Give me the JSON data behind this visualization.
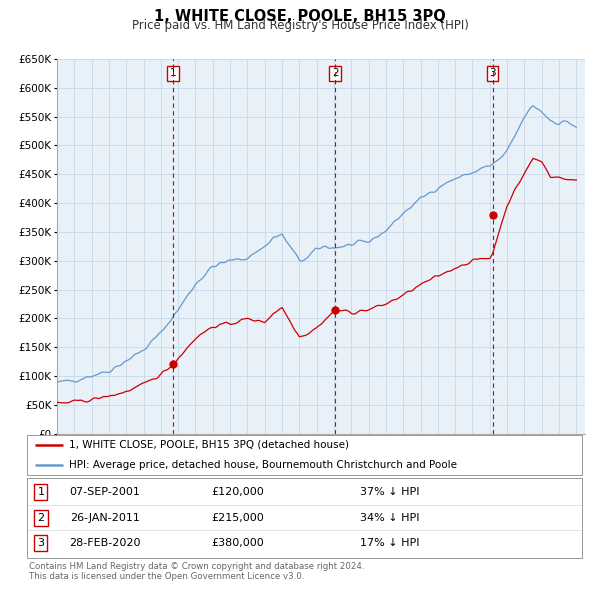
{
  "title": "1, WHITE CLOSE, POOLE, BH15 3PQ",
  "subtitle": "Price paid vs. HM Land Registry's House Price Index (HPI)",
  "ylim": [
    0,
    650000
  ],
  "yticks": [
    0,
    50000,
    100000,
    150000,
    200000,
    250000,
    300000,
    350000,
    400000,
    450000,
    500000,
    550000,
    600000,
    650000
  ],
  "ytick_labels": [
    "£0",
    "£50K",
    "£100K",
    "£150K",
    "£200K",
    "£250K",
    "£300K",
    "£350K",
    "£400K",
    "£450K",
    "£500K",
    "£550K",
    "£600K",
    "£650K"
  ],
  "xlim_start": 1995.0,
  "xlim_end": 2025.5,
  "sale_color": "#cc0000",
  "hpi_color": "#6699cc",
  "hpi_fill_color": "#ddeeff",
  "sale_points": [
    {
      "year": 2001.685,
      "price": 120000,
      "label": "1"
    },
    {
      "year": 2011.07,
      "price": 215000,
      "label": "2"
    },
    {
      "year": 2020.16,
      "price": 380000,
      "label": "3"
    }
  ],
  "vline_color": "#cc0000",
  "legend_sale_label": "1, WHITE CLOSE, POOLE, BH15 3PQ (detached house)",
  "legend_hpi_label": "HPI: Average price, detached house, Bournemouth Christchurch and Poole",
  "table_rows": [
    {
      "num": "1",
      "date": "07-SEP-2001",
      "price": "£120,000",
      "pct": "37% ↓ HPI"
    },
    {
      "num": "2",
      "date": "26-JAN-2011",
      "price": "£215,000",
      "pct": "34% ↓ HPI"
    },
    {
      "num": "3",
      "date": "28-FEB-2020",
      "price": "£380,000",
      "pct": "17% ↓ HPI"
    }
  ],
  "footnote1": "Contains HM Land Registry data © Crown copyright and database right 2024.",
  "footnote2": "This data is licensed under the Open Government Licence v3.0.",
  "bg_color": "#ffffff",
  "grid_color": "#c8d8e8",
  "plot_bg_color": "#e8f0f8"
}
